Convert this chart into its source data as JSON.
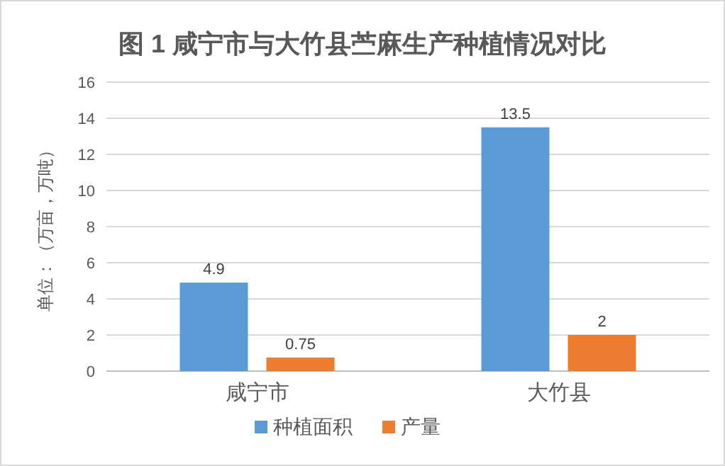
{
  "chart_data": {
    "type": "bar",
    "title": "图 1 咸宁市与大竹县苎麻生产种植情况对比",
    "ylabel": "单位：（万亩，万吨）",
    "categories": [
      "咸宁市",
      "大竹县"
    ],
    "series": [
      {
        "name": "种植面积",
        "color": "#5b9bd5",
        "values": [
          4.9,
          13.5
        ]
      },
      {
        "name": "产量",
        "color": "#ed7d31",
        "values": [
          0.75,
          2
        ]
      }
    ],
    "ylim": [
      0,
      16
    ],
    "yticks": [
      0,
      2,
      4,
      6,
      8,
      10,
      12,
      14,
      16
    ],
    "grid": "y",
    "legend": "bottom",
    "data_labels": true
  }
}
